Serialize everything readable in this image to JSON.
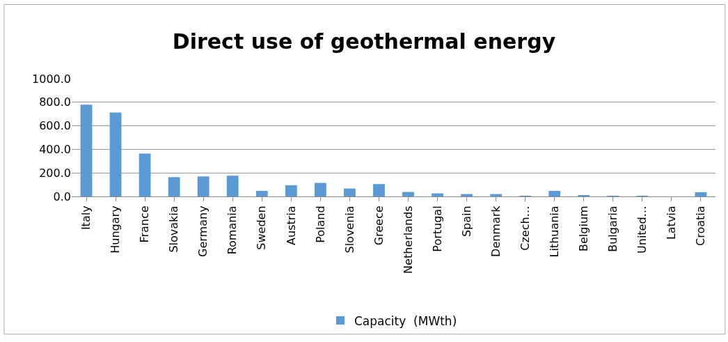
{
  "chart_data": {
    "type": "bar",
    "title": "Direct use of geothermal energy",
    "categories": [
      "Italy",
      "Hungary",
      "France",
      "Slovakia",
      "Germany",
      "Romania",
      "Sweden",
      "Austria",
      "Poland",
      "Slovenia",
      "Greece",
      "Netherlands",
      "Portugal",
      "Spain",
      "Denmark",
      "Czech…",
      "Lithuania",
      "Belgium",
      "Bulgaria",
      "United…",
      "Latvia",
      "Croatia"
    ],
    "series": [
      {
        "name": "Capacity  (MWth)",
        "color": "#5b9bd5",
        "values": [
          779,
          713,
          364,
          164,
          170,
          176,
          47,
          95,
          115,
          67,
          105,
          38,
          26,
          20,
          20,
          4,
          47,
          8,
          4,
          2,
          0,
          36
        ]
      }
    ],
    "ylim": [
      0,
      1000
    ],
    "yticks": [
      {
        "value": 0,
        "label": "0.0"
      },
      {
        "value": 200,
        "label": "200.0"
      },
      {
        "value": 400,
        "label": "400.0"
      },
      {
        "value": 600,
        "label": "600.0"
      },
      {
        "value": 800,
        "label": "800.0"
      },
      {
        "value": 1000,
        "label": "1000.0"
      }
    ],
    "grid": "y",
    "legend": "bottom"
  }
}
